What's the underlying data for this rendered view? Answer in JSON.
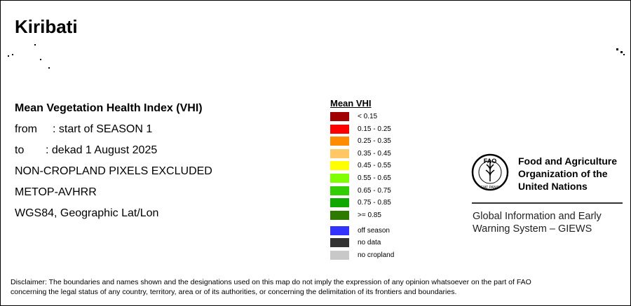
{
  "title": "Kiribati",
  "info": {
    "heading": "Mean Vegetation Health Index (VHI)",
    "from_label": "from",
    "from_value": ": start of SEASON 1",
    "to_label": "to",
    "to_value": ": dekad 1 August 2025",
    "mask": "NON-CROPLAND PIXELS EXCLUDED",
    "sensor": "METOP-AVHRR",
    "projection": "WGS84, Geographic Lat/Lon"
  },
  "legend": {
    "title": "Mean VHI",
    "classes": [
      {
        "label": "< 0.15",
        "color": "#a00000"
      },
      {
        "label": "0.15 - 0.25",
        "color": "#ff0000"
      },
      {
        "label": "0.25 - 0.35",
        "color": "#ff8c00"
      },
      {
        "label": "0.35 - 0.45",
        "color": "#ffc864"
      },
      {
        "label": "0.45 - 0.55",
        "color": "#ffff00"
      },
      {
        "label": "0.55 - 0.65",
        "color": "#80ff00"
      },
      {
        "label": "0.65 - 0.75",
        "color": "#32cd00"
      },
      {
        "label": "0.75 - 0.85",
        "color": "#10a800"
      },
      {
        "label": ">= 0.85",
        "color": "#2e7a00"
      }
    ],
    "other": [
      {
        "label": "off season",
        "color": "#3333ff"
      },
      {
        "label": "no data",
        "color": "#333333"
      },
      {
        "label": "no cropland",
        "color": "#c8c8c8"
      }
    ]
  },
  "fao": {
    "logo_letters": "FAO",
    "logo_motto": "FIAT PANIS",
    "name": [
      "Food and Agriculture",
      "Organization of the",
      "United Nations"
    ],
    "system": [
      "Global Information and Early",
      "Warning System – GIEWS"
    ]
  },
  "disclaimer": [
    "Disclaimer: The boundaries and names shown and the designations used on this map do not imply the expression of any opinion whatsoever on the part of FAO",
    "concerning the legal status of any country, territory, area or of its authorities, or concerning the delimitation of its frontiers and boundaries."
  ]
}
